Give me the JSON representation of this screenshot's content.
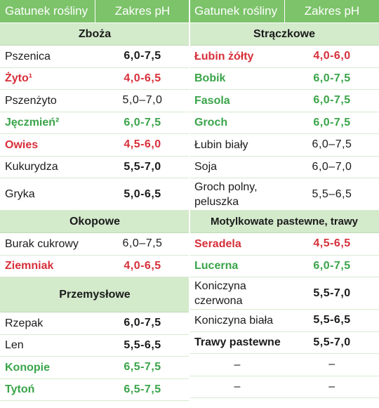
{
  "header": {
    "col_plant": "Gatunek rośliny",
    "col_ph": "Zakres pH"
  },
  "left": [
    {
      "type": "section",
      "label": "Zboża",
      "h": 0
    },
    {
      "type": "row",
      "name": "Pszenica",
      "value": "6,0-7,5",
      "style": "bold"
    },
    {
      "type": "row",
      "name": "Żyto¹",
      "value": "4,0-6,5",
      "style": "red"
    },
    {
      "type": "row",
      "name": "Pszenżyto",
      "value": "5,0–7,0",
      "style": "plain"
    },
    {
      "type": "row",
      "name": "Jęczmień²",
      "value": "6,0-7,5",
      "style": "green"
    },
    {
      "type": "row",
      "name": "Owies",
      "value": "4,5-6,0",
      "style": "red"
    },
    {
      "type": "row",
      "name": "Kukurydza",
      "value": "5,5-7,0",
      "style": "bold"
    },
    {
      "type": "row",
      "name": "Gryka",
      "value": "5,0-6,5",
      "style": "bold",
      "tall": true
    },
    {
      "type": "section",
      "label": "Okopowe"
    },
    {
      "type": "row",
      "name": "Burak cukrowy",
      "value": "6,0–7,5",
      "style": "plain"
    },
    {
      "type": "row",
      "name": "Ziemniak",
      "value": "4,0-6,5",
      "style": "red"
    },
    {
      "type": "section",
      "label": "Przemysłowe",
      "tall": true
    },
    {
      "type": "row",
      "name": "Rzepak",
      "value": "6,0-7,5",
      "style": "bold"
    },
    {
      "type": "row",
      "name": "Len",
      "value": "5,5-6,5",
      "style": "bold"
    },
    {
      "type": "row",
      "name": "Konopie",
      "value": "6,5-7,5",
      "style": "green"
    },
    {
      "type": "row",
      "name": "Tytoń",
      "value": "6,5-7,5",
      "style": "green"
    }
  ],
  "right": [
    {
      "type": "section",
      "label": "Strączkowe"
    },
    {
      "type": "row",
      "name": "Łubin żółty",
      "value": "4,0-6,0",
      "style": "red"
    },
    {
      "type": "row",
      "name": "Bobik",
      "value": "6,0-7,5",
      "style": "green"
    },
    {
      "type": "row",
      "name": "Fasola",
      "value": "6,0-7,5",
      "style": "green"
    },
    {
      "type": "row",
      "name": "Groch",
      "value": "6,0-7,5",
      "style": "green"
    },
    {
      "type": "row",
      "name": "Łubin biały",
      "value": "6,0–7,5",
      "style": "plain"
    },
    {
      "type": "row",
      "name": "Soja",
      "value": "6,0–7,0",
      "style": "plain"
    },
    {
      "type": "row",
      "name": "Groch polny, peluszka",
      "value": "5,5–6,5",
      "style": "plain",
      "tall": true
    },
    {
      "type": "section",
      "label": "Motylkowate pastewne, trawy"
    },
    {
      "type": "row",
      "name": "Seradela",
      "value": "4,5-6,5",
      "style": "red"
    },
    {
      "type": "row",
      "name": "Lucerna",
      "value": "6,0-7,5",
      "style": "green"
    },
    {
      "type": "row",
      "name": "Koniczyna czerwona",
      "value": "5,5-7,0",
      "style": "bold",
      "tall": true
    },
    {
      "type": "row",
      "name": "Koniczyna biała",
      "value": "5,5-6,5",
      "style": "bold"
    },
    {
      "type": "row",
      "name": "Trawy pastewne",
      "value": "5,5-7,0",
      "style": "bold",
      "name_bold": true
    },
    {
      "type": "row",
      "name": "–",
      "value": "–",
      "style": "plain",
      "center": true
    },
    {
      "type": "row",
      "name": "–",
      "value": "–",
      "style": "plain",
      "center": true
    }
  ]
}
